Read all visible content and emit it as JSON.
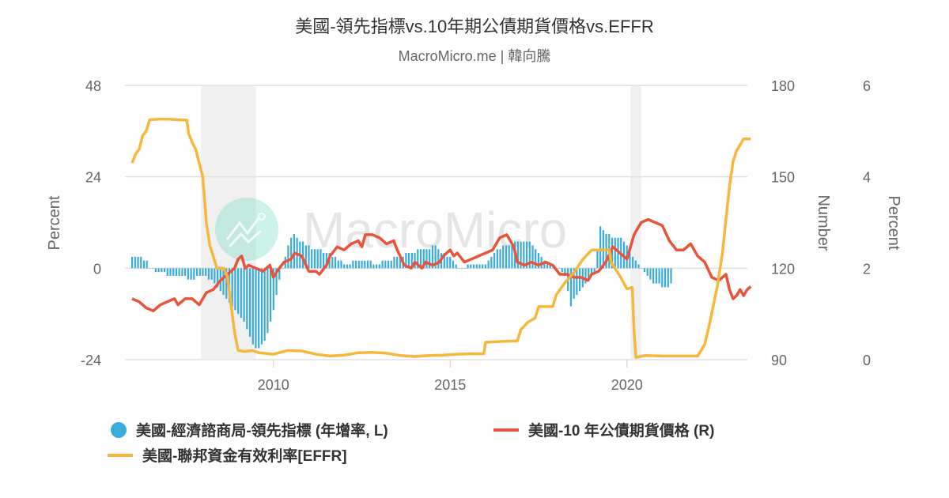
{
  "header": {
    "title": "美國-領先指標vs.10年期公債期貨價格vs.EFFR",
    "subtitle": "MacroMicro.me | 韓向騰"
  },
  "watermark": {
    "text": "MacroMicro",
    "logo_color": "#6ed9c2"
  },
  "colors": {
    "leading_index": "#3aacda",
    "bond_futures": "#e8543a",
    "effr": "#f6b73c",
    "recession_band": "#f0f0f0",
    "gridline": "#e0e0e0"
  },
  "legend": [
    {
      "label": "美國-經濟諮商局-領先指標 (年增率, L)",
      "marker": "dot",
      "color": "#3aacda"
    },
    {
      "label": "美國-10 年公債期貨價格 (R)",
      "marker": "line",
      "color": "#e8543a"
    },
    {
      "label": "美國-聯邦資金有效利率[EFFR]",
      "marker": "line",
      "color": "#f6b73c"
    }
  ],
  "chart_data": {
    "type": "bar+line",
    "title": "美國-領先指標vs.10年期公債期貨價格vs.EFFR",
    "subtitle": "MacroMicro.me | 韓向騰",
    "x_range": [
      2006.0,
      2023.5
    ],
    "x_ticks": [
      "2010",
      "2015",
      "2020"
    ],
    "x_tick_values": [
      2010,
      2015,
      2020
    ],
    "grid": true,
    "legend_position": "bottom",
    "axes": {
      "left": {
        "title": "Percent",
        "ticks": [
          "48",
          "24",
          "0",
          "-24"
        ],
        "range": [
          -24,
          48
        ]
      },
      "right1": {
        "title": "Number",
        "ticks": [
          "180",
          "150",
          "120",
          "90"
        ],
        "range": [
          90,
          180
        ]
      },
      "right2": {
        "title": "Percent",
        "ticks": [
          "6",
          "4",
          "2",
          "0"
        ],
        "range": [
          0,
          6
        ]
      }
    },
    "recessions": [
      [
        2007.95,
        2009.5
      ],
      [
        2020.1,
        2020.4
      ]
    ],
    "series": [
      {
        "name": "美國-經濟諮商局-領先指標 (年增率, L)",
        "type": "bar",
        "axis": "left",
        "start": 2006.0,
        "step": 0.0833,
        "values": [
          3,
          3,
          3,
          3,
          2,
          2,
          0,
          0,
          -1,
          -1,
          -1,
          -1,
          -2,
          -2,
          -2,
          -2,
          -2,
          -2,
          -2,
          -3,
          -3,
          -3,
          -2,
          -2,
          -2,
          -2,
          -3,
          -3,
          -4,
          -5,
          -6,
          -7,
          -8,
          -9,
          -10,
          -11,
          -12,
          -13,
          -14,
          -16,
          -18,
          -20,
          -21,
          -21,
          -20,
          -19,
          -17,
          -14,
          -11,
          -7,
          -3,
          0,
          3,
          6,
          8,
          9,
          8,
          7,
          7,
          6,
          6,
          5,
          5,
          5,
          5,
          4,
          4,
          4,
          3,
          3,
          2,
          2,
          1,
          1,
          1,
          2,
          2,
          2,
          2,
          2,
          2,
          2,
          1,
          1,
          1,
          2,
          2,
          2,
          2,
          3,
          3,
          3,
          3,
          4,
          4,
          4,
          4,
          5,
          5,
          5,
          5,
          5,
          6,
          6,
          5,
          4,
          4,
          3,
          3,
          2,
          1,
          0,
          0,
          0,
          1,
          1,
          1,
          1,
          1,
          1,
          1,
          2,
          3,
          4,
          5,
          5,
          6,
          6,
          6,
          6,
          7,
          7,
          7,
          7,
          7,
          7,
          6,
          5,
          4,
          3,
          2,
          1,
          1,
          0,
          0,
          0,
          -1,
          -2,
          -6,
          -10,
          -8,
          -7,
          -6,
          -5,
          -4,
          -3,
          -2,
          -1,
          5,
          11,
          10,
          9,
          9,
          8,
          8,
          8,
          8,
          7,
          6,
          4,
          3,
          2,
          1,
          0,
          -1,
          -2,
          -3,
          -4,
          -4,
          -4,
          -5,
          -5,
          -5,
          -4
        ]
      },
      {
        "name": "美國-10 年公債期貨價格 (R)",
        "type": "line",
        "axis": "right1",
        "points": [
          [
            2006.0,
            110
          ],
          [
            2006.2,
            109
          ],
          [
            2006.4,
            107
          ],
          [
            2006.6,
            106
          ],
          [
            2006.8,
            108
          ],
          [
            2007.0,
            109
          ],
          [
            2007.2,
            110
          ],
          [
            2007.3,
            108
          ],
          [
            2007.5,
            110
          ],
          [
            2007.7,
            110
          ],
          [
            2007.9,
            108
          ],
          [
            2008.1,
            112
          ],
          [
            2008.3,
            113
          ],
          [
            2008.5,
            116
          ],
          [
            2008.7,
            118
          ],
          [
            2008.9,
            120
          ],
          [
            2009.0,
            123
          ],
          [
            2009.1,
            124
          ],
          [
            2009.2,
            120
          ],
          [
            2009.3,
            121
          ],
          [
            2009.5,
            120
          ],
          [
            2009.7,
            119
          ],
          [
            2009.9,
            121
          ],
          [
            2010.0,
            117
          ],
          [
            2010.1,
            119
          ],
          [
            2010.3,
            122
          ],
          [
            2010.5,
            123
          ],
          [
            2010.6,
            125
          ],
          [
            2010.8,
            124
          ],
          [
            2011.0,
            119
          ],
          [
            2011.2,
            119
          ],
          [
            2011.3,
            118
          ],
          [
            2011.5,
            121
          ],
          [
            2011.6,
            124
          ],
          [
            2011.8,
            127
          ],
          [
            2012.0,
            126
          ],
          [
            2012.2,
            128
          ],
          [
            2012.4,
            129
          ],
          [
            2012.5,
            127
          ],
          [
            2012.6,
            131
          ],
          [
            2012.8,
            131
          ],
          [
            2013.0,
            130
          ],
          [
            2013.2,
            128
          ],
          [
            2013.4,
            129
          ],
          [
            2013.5,
            126
          ],
          [
            2013.7,
            121
          ],
          [
            2013.9,
            120
          ],
          [
            2014.0,
            122
          ],
          [
            2014.2,
            120
          ],
          [
            2014.3,
            122
          ],
          [
            2014.5,
            121
          ],
          [
            2014.7,
            122
          ],
          [
            2014.8,
            124
          ],
          [
            2015.0,
            126
          ],
          [
            2015.1,
            124
          ],
          [
            2015.2,
            125
          ],
          [
            2015.4,
            122
          ],
          [
            2015.6,
            123
          ],
          [
            2015.8,
            124
          ],
          [
            2016.0,
            125
          ],
          [
            2016.2,
            126
          ],
          [
            2016.4,
            130
          ],
          [
            2016.6,
            131
          ],
          [
            2016.8,
            127
          ],
          [
            2016.9,
            122
          ],
          [
            2017.1,
            121
          ],
          [
            2017.3,
            122
          ],
          [
            2017.5,
            121
          ],
          [
            2017.7,
            122
          ],
          [
            2017.9,
            121
          ],
          [
            2018.1,
            118
          ],
          [
            2018.3,
            118
          ],
          [
            2018.5,
            117
          ],
          [
            2018.7,
            117
          ],
          [
            2018.9,
            116
          ],
          [
            2019.0,
            118
          ],
          [
            2019.2,
            119
          ],
          [
            2019.4,
            122
          ],
          [
            2019.6,
            127
          ],
          [
            2019.8,
            125
          ],
          [
            2020.0,
            123
          ],
          [
            2020.2,
            131
          ],
          [
            2020.4,
            135
          ],
          [
            2020.6,
            136
          ],
          [
            2020.8,
            135
          ],
          [
            2021.0,
            134
          ],
          [
            2021.2,
            129
          ],
          [
            2021.4,
            126
          ],
          [
            2021.6,
            126
          ],
          [
            2021.8,
            128
          ],
          [
            2022.0,
            124
          ],
          [
            2022.2,
            122
          ],
          [
            2022.4,
            117
          ],
          [
            2022.6,
            116
          ],
          [
            2022.8,
            118
          ],
          [
            2022.9,
            113
          ],
          [
            2023.0,
            110
          ],
          [
            2023.1,
            111
          ],
          [
            2023.2,
            113
          ],
          [
            2023.3,
            111
          ],
          [
            2023.4,
            113
          ],
          [
            2023.5,
            114
          ]
        ]
      },
      {
        "name": "美國-聯邦資金有效利率[EFFR]",
        "type": "line",
        "axis": "right2",
        "points": [
          [
            2006.0,
            4.3
          ],
          [
            2006.1,
            4.5
          ],
          [
            2006.2,
            4.6
          ],
          [
            2006.3,
            4.9
          ],
          [
            2006.4,
            5.0
          ],
          [
            2006.5,
            5.25
          ],
          [
            2006.8,
            5.26
          ],
          [
            2007.0,
            5.26
          ],
          [
            2007.3,
            5.25
          ],
          [
            2007.55,
            5.24
          ],
          [
            2007.6,
            4.95
          ],
          [
            2007.7,
            4.75
          ],
          [
            2007.8,
            4.6
          ],
          [
            2007.9,
            4.3
          ],
          [
            2008.0,
            4.0
          ],
          [
            2008.1,
            3.0
          ],
          [
            2008.2,
            2.5
          ],
          [
            2008.4,
            2.0
          ],
          [
            2008.5,
            2.0
          ],
          [
            2008.6,
            2.0
          ],
          [
            2008.7,
            1.8
          ],
          [
            2008.8,
            1.2
          ],
          [
            2008.9,
            0.6
          ],
          [
            2009.0,
            0.2
          ],
          [
            2009.2,
            0.18
          ],
          [
            2009.4,
            0.2
          ],
          [
            2009.6,
            0.15
          ],
          [
            2010.0,
            0.12
          ],
          [
            2010.4,
            0.2
          ],
          [
            2010.8,
            0.19
          ],
          [
            2011.2,
            0.12
          ],
          [
            2011.6,
            0.08
          ],
          [
            2012.0,
            0.1
          ],
          [
            2012.4,
            0.15
          ],
          [
            2012.8,
            0.16
          ],
          [
            2013.2,
            0.14
          ],
          [
            2013.6,
            0.09
          ],
          [
            2014.0,
            0.07
          ],
          [
            2014.4,
            0.09
          ],
          [
            2014.8,
            0.1
          ],
          [
            2015.2,
            0.12
          ],
          [
            2015.6,
            0.13
          ],
          [
            2015.95,
            0.13
          ],
          [
            2016.0,
            0.38
          ],
          [
            2016.5,
            0.4
          ],
          [
            2016.9,
            0.41
          ],
          [
            2017.0,
            0.66
          ],
          [
            2017.2,
            0.82
          ],
          [
            2017.4,
            0.91
          ],
          [
            2017.5,
            1.16
          ],
          [
            2017.9,
            1.16
          ],
          [
            2018.0,
            1.42
          ],
          [
            2018.25,
            1.69
          ],
          [
            2018.5,
            1.91
          ],
          [
            2018.75,
            2.19
          ],
          [
            2019.0,
            2.4
          ],
          [
            2019.5,
            2.4
          ],
          [
            2019.55,
            2.13
          ],
          [
            2019.8,
            1.83
          ],
          [
            2020.0,
            1.55
          ],
          [
            2020.15,
            1.58
          ],
          [
            2020.2,
            0.65
          ],
          [
            2020.25,
            0.05
          ],
          [
            2020.5,
            0.09
          ],
          [
            2021.0,
            0.08
          ],
          [
            2021.5,
            0.08
          ],
          [
            2022.0,
            0.08
          ],
          [
            2022.2,
            0.33
          ],
          [
            2022.35,
            0.83
          ],
          [
            2022.45,
            1.21
          ],
          [
            2022.55,
            1.58
          ],
          [
            2022.7,
            2.33
          ],
          [
            2022.8,
            3.08
          ],
          [
            2022.9,
            3.78
          ],
          [
            2023.0,
            4.33
          ],
          [
            2023.1,
            4.57
          ],
          [
            2023.3,
            4.83
          ],
          [
            2023.5,
            4.83
          ]
        ]
      }
    ]
  }
}
